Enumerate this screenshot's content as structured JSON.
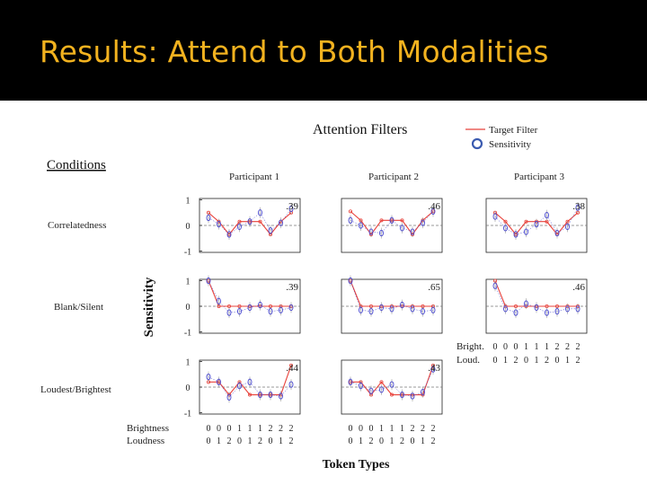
{
  "slide": {
    "title": "Results: Attend to Both Modalities"
  },
  "colors": {
    "title_bar": "#000000",
    "title_text": "#f2b21f",
    "target": "#e8413a",
    "sensitivity": "#4a4ad0",
    "dashed": "#777777"
  },
  "figure": {
    "title": "Attention Filters",
    "legend": {
      "target": "Target Filter",
      "sensitivity": "Sensitivity"
    },
    "conditions_heading": "Conditions",
    "x_title": "Token Types",
    "y_title": "Sensitivity",
    "row_labels": [
      "Correlatedness",
      "Blank/Silent",
      "Loudest/Brightest"
    ],
    "col_labels": [
      "Participant 1",
      "Participant 2",
      "Participant 3"
    ],
    "axis_rows": {
      "brightness_label": "Brightness",
      "loudness_label": "Loudness",
      "bright_label": "Bright.",
      "loud_label": "Loud."
    },
    "brightness": [
      "0",
      "0",
      "0",
      "1",
      "1",
      "1",
      "2",
      "2",
      "2"
    ],
    "loudness": [
      "0",
      "1",
      "2",
      "0",
      "1",
      "2",
      "0",
      "1",
      "2"
    ],
    "ytick_labels": [
      "1",
      "0",
      "-1"
    ]
  },
  "chart_data": {
    "type": "line",
    "x": [
      "00",
      "01",
      "02",
      "10",
      "11",
      "12",
      "20",
      "21",
      "22"
    ],
    "ylim": [
      -1,
      1
    ],
    "panels": [
      {
        "condition": "Correlatedness",
        "participant": "Participant 1",
        "r_label": ".39",
        "target": [
          0.5,
          0.15,
          -0.35,
          0.15,
          0.15,
          0.15,
          -0.35,
          0.15,
          0.5
        ],
        "sensitivity": [
          0.3,
          0.05,
          -0.35,
          -0.05,
          0.15,
          0.5,
          -0.2,
          0.1,
          0.65
        ]
      },
      {
        "condition": "Correlatedness",
        "participant": "Participant 2",
        "r_label": ".46",
        "target": [
          0.55,
          0.2,
          -0.35,
          0.2,
          0.2,
          0.2,
          -0.35,
          0.2,
          0.55
        ],
        "sensitivity": [
          0.2,
          0.0,
          -0.25,
          -0.3,
          0.2,
          -0.1,
          -0.25,
          0.1,
          0.55
        ]
      },
      {
        "condition": "Correlatedness",
        "participant": "Participant 3",
        "r_label": ".38",
        "target": [
          0.5,
          0.15,
          -0.35,
          0.15,
          0.15,
          0.15,
          -0.35,
          0.15,
          0.5
        ],
        "sensitivity": [
          0.35,
          -0.1,
          -0.35,
          -0.25,
          0.05,
          0.4,
          -0.3,
          -0.05,
          0.7
        ]
      },
      {
        "condition": "Blank/Silent",
        "participant": "Participant 1",
        "r_label": ".39",
        "target": [
          1.0,
          0.0,
          0.0,
          0.0,
          0.0,
          0.0,
          0.0,
          0.0,
          0.0
        ],
        "sensitivity": [
          1.0,
          0.2,
          -0.25,
          -0.2,
          -0.05,
          0.05,
          -0.2,
          -0.15,
          -0.05
        ]
      },
      {
        "condition": "Blank/Silent",
        "participant": "Participant 2",
        "r_label": ".65",
        "target": [
          1.0,
          0.0,
          0.0,
          0.0,
          0.0,
          0.0,
          0.0,
          0.0,
          0.0
        ],
        "sensitivity": [
          1.0,
          -0.15,
          -0.2,
          -0.05,
          -0.1,
          0.05,
          -0.1,
          -0.2,
          -0.15
        ]
      },
      {
        "condition": "Blank/Silent",
        "participant": "Participant 3",
        "r_label": ".46",
        "target": [
          1.0,
          0.0,
          0.0,
          0.0,
          0.0,
          0.0,
          0.0,
          0.0,
          0.0
        ],
        "sensitivity": [
          0.8,
          -0.1,
          -0.25,
          0.1,
          -0.05,
          -0.25,
          -0.2,
          -0.1,
          -0.1
        ]
      },
      {
        "condition": "Loudest/Brightest",
        "participant": "Participant 1",
        "r_label": ".44",
        "target": [
          0.2,
          0.2,
          -0.3,
          0.2,
          -0.3,
          -0.3,
          -0.3,
          -0.3,
          0.85
        ],
        "sensitivity": [
          0.4,
          0.2,
          -0.4,
          0.05,
          0.2,
          -0.3,
          -0.3,
          -0.35,
          0.1
        ]
      },
      {
        "condition": "Loudest/Brightest",
        "participant": "Participant 2",
        "r_label": ".43",
        "target": [
          0.2,
          0.2,
          -0.3,
          0.2,
          -0.3,
          -0.3,
          -0.3,
          -0.3,
          0.85
        ],
        "sensitivity": [
          0.2,
          0.05,
          -0.15,
          -0.1,
          0.1,
          -0.3,
          -0.35,
          -0.2,
          0.7
        ]
      }
    ]
  }
}
